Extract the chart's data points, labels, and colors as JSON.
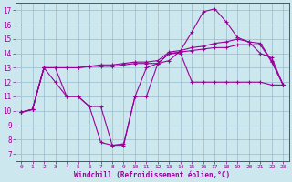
{
  "xlabel": "Windchill (Refroidissement éolien,°C)",
  "background_color": "#cce8ee",
  "grid_color": "#99bbcc",
  "line_color": "#990099",
  "xlim": [
    -0.5,
    23.5
  ],
  "ylim": [
    6.5,
    17.5
  ],
  "xticks": [
    0,
    1,
    2,
    3,
    4,
    5,
    6,
    7,
    8,
    9,
    10,
    11,
    12,
    13,
    14,
    15,
    16,
    17,
    18,
    19,
    20,
    21,
    22,
    23
  ],
  "yticks": [
    7,
    8,
    9,
    10,
    11,
    12,
    13,
    14,
    15,
    16,
    17
  ],
  "series": [
    [
      9.9,
      10.1,
      13.0,
      12.0,
      11.0,
      11.0,
      10.3,
      10.3,
      7.6,
      7.7,
      11.0,
      11.0,
      13.3,
      13.5,
      14.2,
      15.5,
      16.9,
      17.1,
      16.2,
      15.1,
      14.8,
      14.0,
      13.7,
      11.8
    ],
    [
      9.9,
      10.1,
      13.0,
      13.0,
      13.0,
      13.0,
      13.1,
      13.2,
      13.2,
      13.3,
      13.4,
      13.4,
      13.5,
      14.1,
      14.2,
      14.4,
      14.5,
      14.7,
      14.8,
      15.0,
      14.8,
      14.7,
      13.5,
      11.8
    ],
    [
      9.9,
      10.1,
      13.0,
      13.0,
      13.0,
      13.0,
      13.1,
      13.1,
      13.1,
      13.2,
      13.3,
      13.3,
      13.3,
      14.0,
      14.1,
      14.2,
      14.3,
      14.4,
      14.4,
      14.6,
      14.6,
      14.6,
      13.4,
      11.8
    ],
    [
      9.9,
      10.1,
      13.0,
      13.0,
      11.0,
      11.0,
      10.3,
      7.8,
      7.6,
      7.6,
      11.0,
      13.0,
      13.3,
      14.0,
      14.0,
      12.0,
      12.0,
      12.0,
      12.0,
      12.0,
      12.0,
      12.0,
      11.8,
      11.8
    ]
  ]
}
